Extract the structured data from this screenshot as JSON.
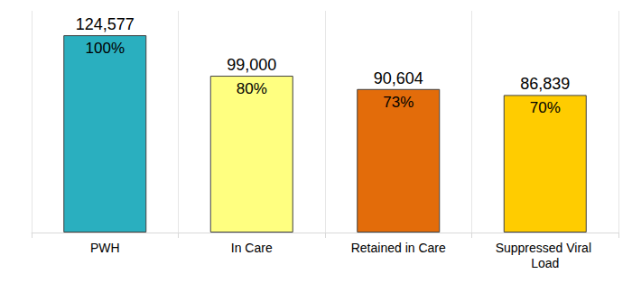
{
  "chart_data": {
    "type": "bar",
    "categories": [
      "PWH",
      "In Care",
      "Retained in Care",
      "Suppressed Viral Load"
    ],
    "values": [
      124577,
      99000,
      90604,
      86839
    ],
    "value_labels": [
      "124,577",
      "99,000",
      "90,604",
      "86,839"
    ],
    "shares": [
      100,
      80,
      73,
      70
    ],
    "share_labels": [
      "100%",
      "80%",
      "73%",
      "70%"
    ],
    "colors": [
      "#2aafbf",
      "#ffff80",
      "#e36c0a",
      "#ffcc00"
    ],
    "ylim": [
      0,
      140000
    ],
    "yticks": [
      0,
      140000
    ],
    "grid": true,
    "data_labels": true,
    "tick_labels": "x"
  }
}
